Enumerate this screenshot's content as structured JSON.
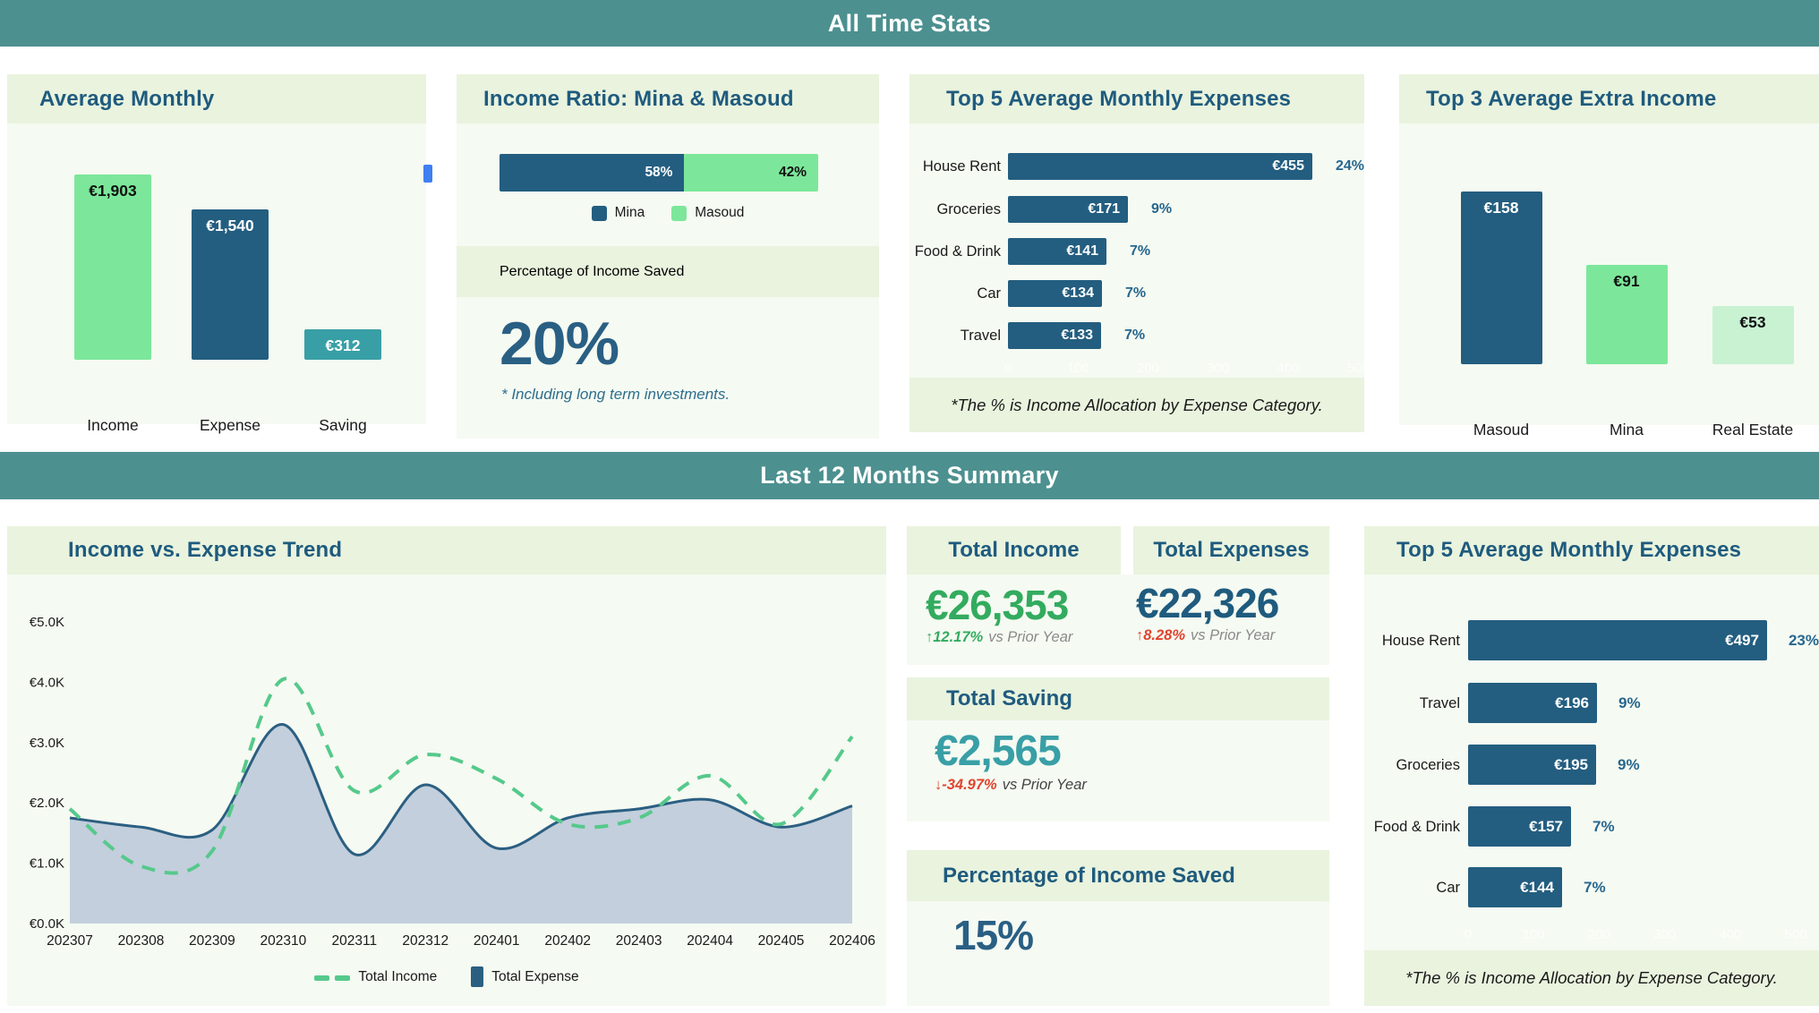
{
  "sections": {
    "all_time_title": "All Time Stats",
    "last12_title": "Last 12 Months Summary"
  },
  "colors": {
    "teal_band": "#4D9090",
    "header_green": "#E9F3DE",
    "panel_bg": "#F5FAF2",
    "dark_blue": "#235E80",
    "title_blue": "#1F5B7E",
    "green_bar": "#7CE79A",
    "light_green_bar": "#C8F2D2",
    "saving_teal": "#399FA6",
    "kpi_green": "#33AB5F",
    "kpi_red": "#E0442F",
    "trend_income": "#55C98B",
    "trend_expense": "#2B5F82",
    "trend_area": "#C3CFDC",
    "scroll_marker_blue": "#3E7FF2"
  },
  "chart_data": [
    {
      "id": "avg_monthly",
      "type": "bar",
      "title": "Average Monthly",
      "categories": [
        "Income",
        "Expense",
        "Saving"
      ],
      "values": [
        1903,
        1540,
        312
      ],
      "value_labels": [
        "€1,903",
        "€1,540",
        "€312"
      ],
      "bar_colors": [
        "#7CE79A",
        "#235E80",
        "#399FA6"
      ],
      "label_colors": [
        "#111111",
        "#FFFFFF",
        "#FFFFFF"
      ]
    },
    {
      "id": "income_ratio",
      "type": "stacked-bar",
      "title": "Income Ratio: Mina & Masoud",
      "categories": [
        "Mina",
        "Masoud"
      ],
      "values": [
        58,
        42
      ],
      "value_labels": [
        "58%",
        "42%"
      ],
      "colors": [
        "#235E80",
        "#7CE79A"
      ],
      "label_colors": [
        "#FFFFFF",
        "#111111"
      ],
      "legend": [
        "Mina",
        "Masoud"
      ]
    },
    {
      "id": "top5_alltime",
      "type": "hbar",
      "title": "Top 5 Average Monthly Expenses",
      "categories": [
        "House Rent",
        "Groceries",
        "Food & Drink",
        "Car",
        "Travel"
      ],
      "values": [
        455,
        171,
        141,
        134,
        133
      ],
      "value_labels": [
        "€455",
        "€171",
        "€141",
        "€134",
        "€133"
      ],
      "pct_labels": [
        "24%",
        "9%",
        "7%",
        "7%",
        "7%"
      ],
      "xlim": [
        0,
        500
      ],
      "axis_ticks": [
        0,
        100,
        200,
        300,
        400,
        500
      ],
      "note": "*The % is Income Allocation by Expense Category."
    },
    {
      "id": "top3_extra",
      "type": "bar",
      "title": "Top 3 Average Extra Income",
      "categories": [
        "Masoud",
        "Mina",
        "Real Estate"
      ],
      "values": [
        158,
        91,
        53
      ],
      "value_labels": [
        "€158",
        "€91",
        "€53"
      ],
      "bar_colors": [
        "#235E80",
        "#7CE79A",
        "#C8F2D2"
      ],
      "label_colors": [
        "#FFFFFF",
        "#111111",
        "#111111"
      ]
    },
    {
      "id": "trend",
      "type": "line",
      "title": "Income vs. Expense Trend",
      "x": [
        "202307",
        "202308",
        "202309",
        "202310",
        "202311",
        "202312",
        "202401",
        "202402",
        "202403",
        "202404",
        "202405",
        "202406"
      ],
      "series": [
        {
          "name": "Total Income",
          "style": "dashed",
          "color": "#55C98B",
          "values": [
            1.9,
            0.95,
            1.2,
            4.05,
            2.2,
            2.8,
            2.4,
            1.65,
            1.75,
            2.45,
            1.65,
            3.1
          ]
        },
        {
          "name": "Total Expense",
          "style": "area",
          "color": "#2B5F82",
          "fill": "#C3CFDC",
          "values": [
            1.75,
            1.6,
            1.55,
            3.3,
            1.15,
            2.3,
            1.25,
            1.75,
            1.9,
            2.05,
            1.6,
            1.95
          ]
        }
      ],
      "ylim": [
        0,
        5
      ],
      "y_tick_labels": [
        "€0.0K",
        "€1.0K",
        "€2.0K",
        "€3.0K",
        "€4.0K",
        "€5.0K"
      ],
      "legend_position": "bottom"
    },
    {
      "id": "top5_last12",
      "type": "hbar",
      "title": "Top 5 Average Monthly Expenses",
      "categories": [
        "House Rent",
        "Travel",
        "Groceries",
        "Food & Drink",
        "Car"
      ],
      "values": [
        497,
        196,
        195,
        157,
        144
      ],
      "value_labels": [
        "€497",
        "€196",
        "€195",
        "€157",
        "€144"
      ],
      "pct_labels": [
        "23%",
        "9%",
        "9%",
        "7%",
        "7%"
      ],
      "xlim": [
        0,
        500
      ],
      "axis_ticks": [
        0,
        100,
        200,
        300,
        400,
        500
      ],
      "note": "*The % is Income Allocation by Expense Category."
    }
  ],
  "income_ratio_extra": {
    "saved_title": "Percentage of Income Saved",
    "saved_value": "20%",
    "note": "* Including long term investments."
  },
  "kpis": {
    "income": {
      "title": "Total Income",
      "value": "€26,353",
      "arrow": "↑",
      "change": "12.17%",
      "suffix": "vs Prior Year"
    },
    "expenses": {
      "title": "Total Expenses",
      "value": "€22,326",
      "arrow": "↑",
      "change": "8.28%",
      "suffix": "vs Prior Year"
    },
    "saving": {
      "title": "Total Saving",
      "value": "€2,565",
      "arrow": "↓",
      "change": "-34.97%",
      "suffix": "vs Prior Year"
    },
    "pct_saved": {
      "title": "Percentage of Income Saved",
      "value": "15%"
    }
  }
}
